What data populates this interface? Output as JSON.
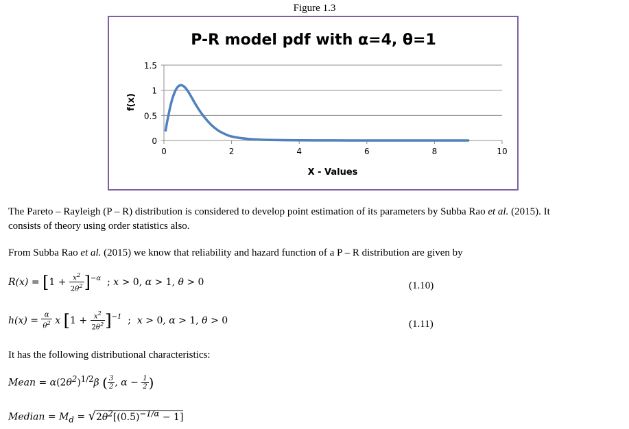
{
  "figure_caption": "Figure 1.3",
  "chart_data": {
    "type": "line",
    "title": "P-R model pdf with α=4, θ=1",
    "xlabel": "X - Values",
    "ylabel": "f(x)",
    "xlim": [
      0,
      10
    ],
    "ylim": [
      0,
      1.5
    ],
    "x_ticks": [
      "0",
      "2",
      "4",
      "6",
      "8",
      "10"
    ],
    "y_ticks": [
      "0",
      "0.5",
      "1",
      "1.5"
    ],
    "grid": "horizontal",
    "color": "#4f81bd",
    "series": [
      {
        "x": [
          0.05,
          0.1,
          0.2,
          0.3,
          0.4,
          0.5,
          0.6,
          0.7,
          0.8,
          0.9,
          1.0,
          1.1,
          1.2,
          1.4,
          1.6,
          1.8,
          2.0,
          2.5,
          3.0,
          4.0,
          5.0,
          6.0,
          7.0,
          8.0,
          9.0
        ],
        "y": [
          0.2,
          0.39,
          0.71,
          0.93,
          1.06,
          1.1,
          1.07,
          0.99,
          0.88,
          0.76,
          0.65,
          0.55,
          0.46,
          0.31,
          0.2,
          0.13,
          0.08,
          0.03,
          0.012,
          0.003,
          0.001,
          0.0005,
          0.0002,
          0.0001,
          0.0001
        ]
      }
    ]
  },
  "text": {
    "para1_a": "The Pareto – Rayleigh (P – R) distribution is considered to develop point estimation of its parameters by Subba Rao ",
    "para1_etal": "et al.",
    "para1_b": " (2015). It",
    "para1_line2": "consists of theory using order statistics also.",
    "para2_a": "From Subba Rao ",
    "para2_etal": "et al.",
    "para2_b": " (2015) we know that reliability and hazard function of a P – R distribution are given by",
    "eq110_num": "(1.10)",
    "eq111_num": "(1.11)",
    "para3": "It has the following distributional characteristics:"
  }
}
